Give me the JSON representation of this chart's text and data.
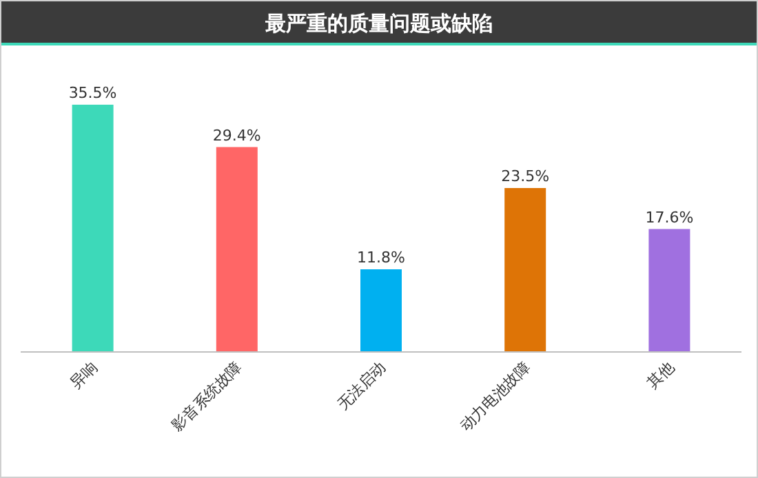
{
  "chart_data": {
    "type": "bar",
    "title": "最严重的质量问题或缺陷",
    "categories": [
      "异响",
      "影音系统故障",
      "无法启动",
      "动力电池故障",
      "其他"
    ],
    "values": [
      35.5,
      29.4,
      11.8,
      23.5,
      17.6
    ],
    "colors": [
      "#3dd9b9",
      "#ff6666",
      "#00b0f0",
      "#de7406",
      "#a070e0"
    ],
    "value_labels": [
      "35.5%",
      "29.4%",
      "11.8%",
      "23.5%",
      "17.6%"
    ]
  }
}
